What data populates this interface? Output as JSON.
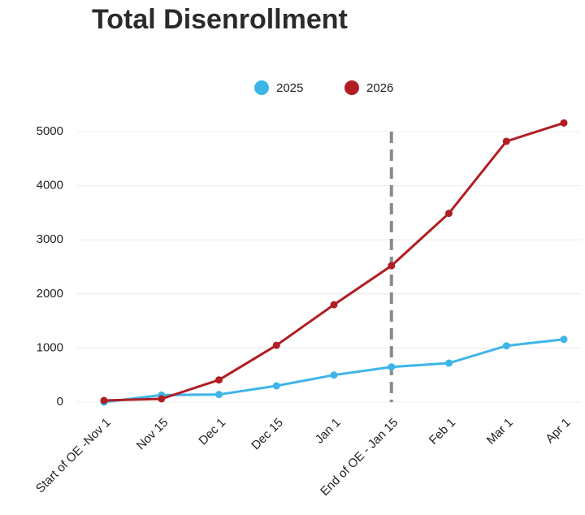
{
  "chart_data": {
    "type": "line",
    "title": "Total Disenrollment",
    "categories": [
      "Start of OE -Nov 1",
      "Nov 15",
      "Dec 1",
      "Dec 15",
      "Jan 1",
      "End of OE - Jan 15",
      "Feb 1",
      "Mar 1",
      "Apr 1"
    ],
    "series": [
      {
        "name": "2025",
        "color": "#3db5e8",
        "values": [
          0,
          130,
          140,
          300,
          500,
          650,
          720,
          1040,
          1160
        ]
      },
      {
        "name": "2026",
        "color": "#b01e23",
        "values": [
          30,
          60,
          410,
          1050,
          1800,
          2520,
          3490,
          4820,
          5160
        ]
      }
    ],
    "ylim": [
      0,
      5000
    ],
    "yticks": [
      0,
      1000,
      2000,
      3000,
      4000,
      5000
    ],
    "grid": true
  }
}
